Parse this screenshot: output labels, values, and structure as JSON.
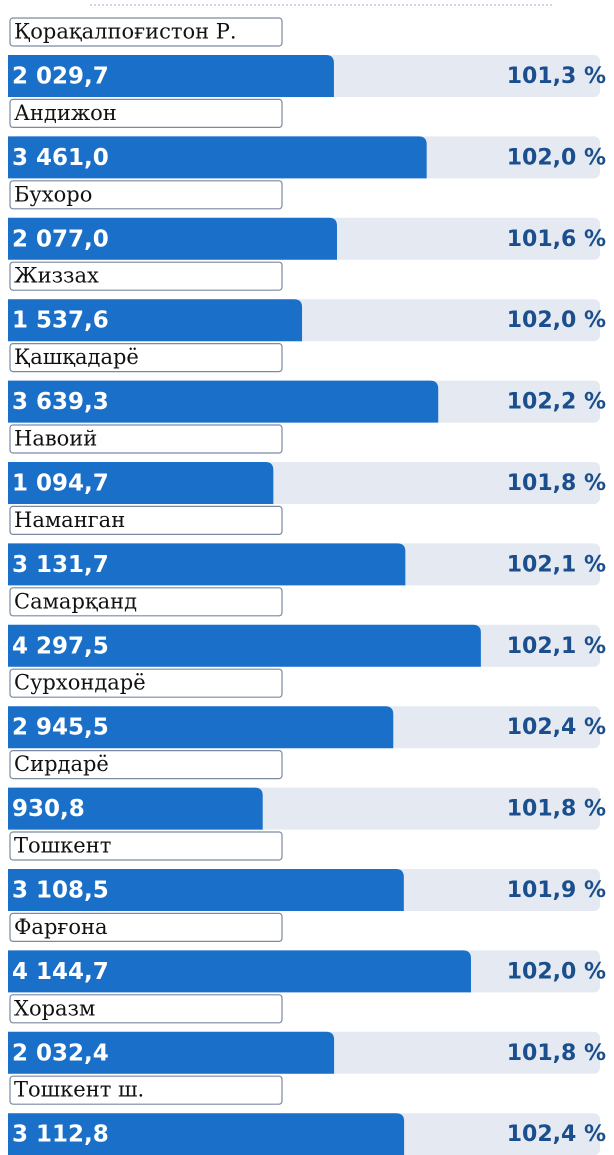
{
  "chart_data": {
    "type": "bar",
    "categories": [
      "Қорақалпоғистон Р.",
      "Андижон",
      "Бухоро",
      "Жиззах",
      "Қашқадарё",
      "Навоий",
      "Наманган",
      "Самарқанд",
      "Сурхондарё",
      "Сирдарё",
      "Тошкент",
      "Фарғона",
      "Хоразм",
      "Тошкент ш."
    ],
    "series": [
      {
        "color": "#1a6fc9",
        "values": [
          2029.7,
          3461.0,
          2077.0,
          1537.6,
          3639.3,
          1094.7,
          3131.7,
          4297.5,
          2945.5,
          930.8,
          3108.5,
          4144.7,
          2032.4,
          3112.8
        ],
        "value_labels": [
          "2 029,7",
          "3 461,0",
          "2 077,0",
          "1 537,6",
          "3 639,3",
          "1 094,7",
          "3 131,7",
          "4 297,5",
          "2 945,5",
          "930,8",
          "3 108,5",
          "4 144,7",
          "2 032,4",
          "3 112,8"
        ]
      },
      {
        "color": "#1b4e8c",
        "values": [
          101.3,
          102.0,
          101.6,
          102.0,
          102.2,
          101.8,
          102.1,
          102.1,
          102.4,
          101.8,
          101.9,
          102.0,
          101.8,
          102.4
        ],
        "value_labels": [
          "101,3 %",
          "102,0 %",
          "101,6 %",
          "102,0 %",
          "102,2 %",
          "101,8 %",
          "102,1 %",
          "102,1 %",
          "102,4 %",
          "101,8 %",
          "101,9 %",
          "102,0 %",
          "101,8 %",
          "102,4 %"
        ]
      }
    ],
    "xlim": [
      -3000,
      4500
    ]
  }
}
